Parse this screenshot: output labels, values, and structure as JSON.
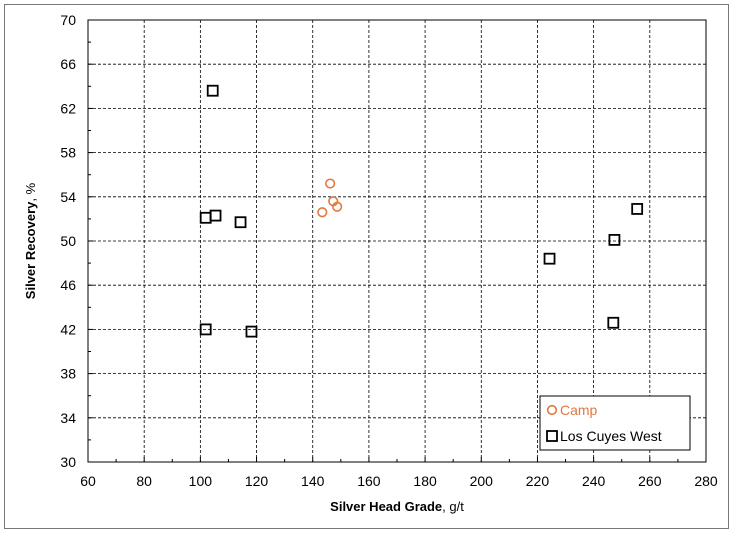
{
  "chart_data": {
    "type": "scatter",
    "title": "",
    "xlabel_bold": "Silver Head Grade",
    "xlabel_unit": ", g/t",
    "ylabel_bold": "Silver Recovery",
    "ylabel_unit": ", %",
    "xlim": [
      60,
      280
    ],
    "ylim": [
      30,
      70
    ],
    "xticks": [
      60,
      80,
      100,
      120,
      140,
      160,
      180,
      200,
      220,
      240,
      260,
      280
    ],
    "yticks": [
      30,
      34,
      38,
      42,
      46,
      50,
      54,
      58,
      62,
      66,
      70
    ],
    "grid": true,
    "legend_position": "bottom-right",
    "series": [
      {
        "name": "Camp",
        "marker": "circle",
        "color": "#E07840",
        "points": [
          [
            146.2,
            55.2
          ],
          [
            143.4,
            52.6
          ],
          [
            147.3,
            53.6
          ],
          [
            148.7,
            53.1
          ]
        ]
      },
      {
        "name": "Los Cuyes West",
        "marker": "square",
        "color": "#000000",
        "points": [
          [
            104.4,
            63.6
          ],
          [
            101.9,
            52.1
          ],
          [
            105.4,
            52.3
          ],
          [
            114.3,
            51.7
          ],
          [
            101.9,
            42.0
          ],
          [
            118.2,
            41.8
          ],
          [
            224.3,
            48.4
          ],
          [
            247.4,
            50.1
          ],
          [
            255.5,
            52.9
          ],
          [
            247.0,
            42.6
          ]
        ]
      }
    ]
  }
}
